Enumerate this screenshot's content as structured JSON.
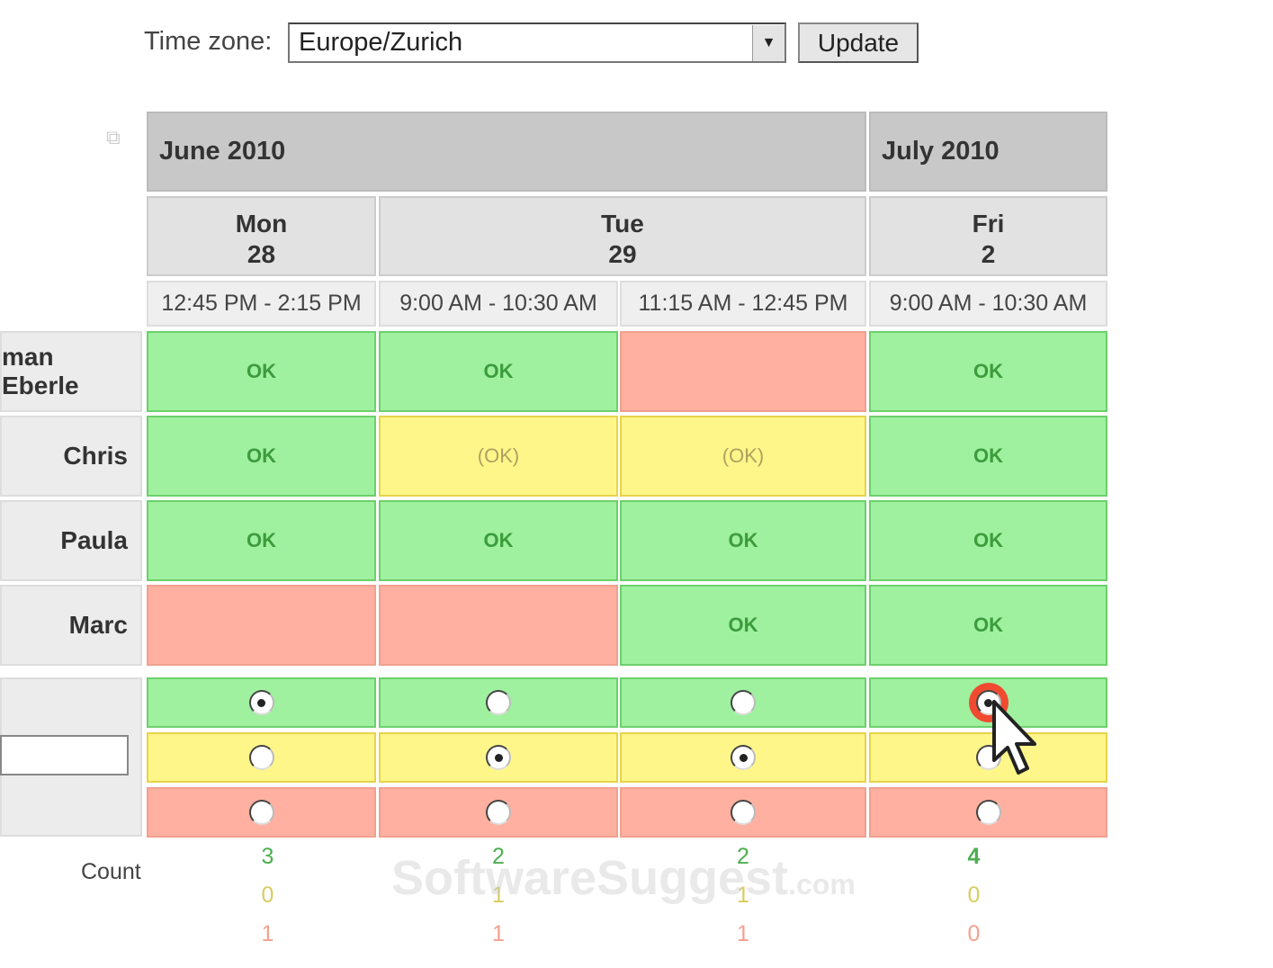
{
  "timezone": {
    "label": "Time zone:",
    "value": "Europe/Zurich",
    "update_label": "Update"
  },
  "months": [
    {
      "label": "June 2010"
    },
    {
      "label": "July 2010"
    }
  ],
  "days": [
    {
      "weekday": "Mon",
      "day": "28"
    },
    {
      "weekday": "Tue",
      "day": "29"
    },
    {
      "weekday": "Fri",
      "day": "2"
    }
  ],
  "times": [
    "12:45 PM - 2:15 PM",
    "9:00 AM - 10:30 AM",
    "11:15 AM - 12:45 PM",
    "9:00 AM - 10:30 AM"
  ],
  "participants": [
    {
      "name": "man Eberle",
      "answers": [
        "ok",
        "ok",
        "no",
        "ok"
      ]
    },
    {
      "name": "Chris",
      "answers": [
        "ok",
        "maybe",
        "maybe",
        "ok"
      ]
    },
    {
      "name": "Paula",
      "answers": [
        "ok",
        "ok",
        "ok",
        "ok"
      ]
    },
    {
      "name": "Marc",
      "answers": [
        "no",
        "no",
        "ok",
        "ok"
      ]
    }
  ],
  "answer_labels": {
    "ok": "OK",
    "maybe": "(OK)",
    "no": ""
  },
  "new_entry": {
    "name_value": "",
    "selected": [
      "ok",
      "maybe",
      "maybe",
      "ok"
    ]
  },
  "count": {
    "label": "Count",
    "yes": [
      "3",
      "2",
      "2",
      "4"
    ],
    "maybe": [
      "0",
      "1",
      "1",
      "0"
    ],
    "no": [
      "1",
      "1",
      "1",
      "0"
    ]
  },
  "colors": {
    "ok": "#9ff09f",
    "maybe": "#fff68a",
    "no": "#ffb0a0",
    "count_yes": "#4caf50",
    "count_maybe": "#d8cc60",
    "count_no": "#f4a090"
  },
  "watermark": {
    "main": "SoftwareSuggest",
    "suffix": ".com"
  }
}
